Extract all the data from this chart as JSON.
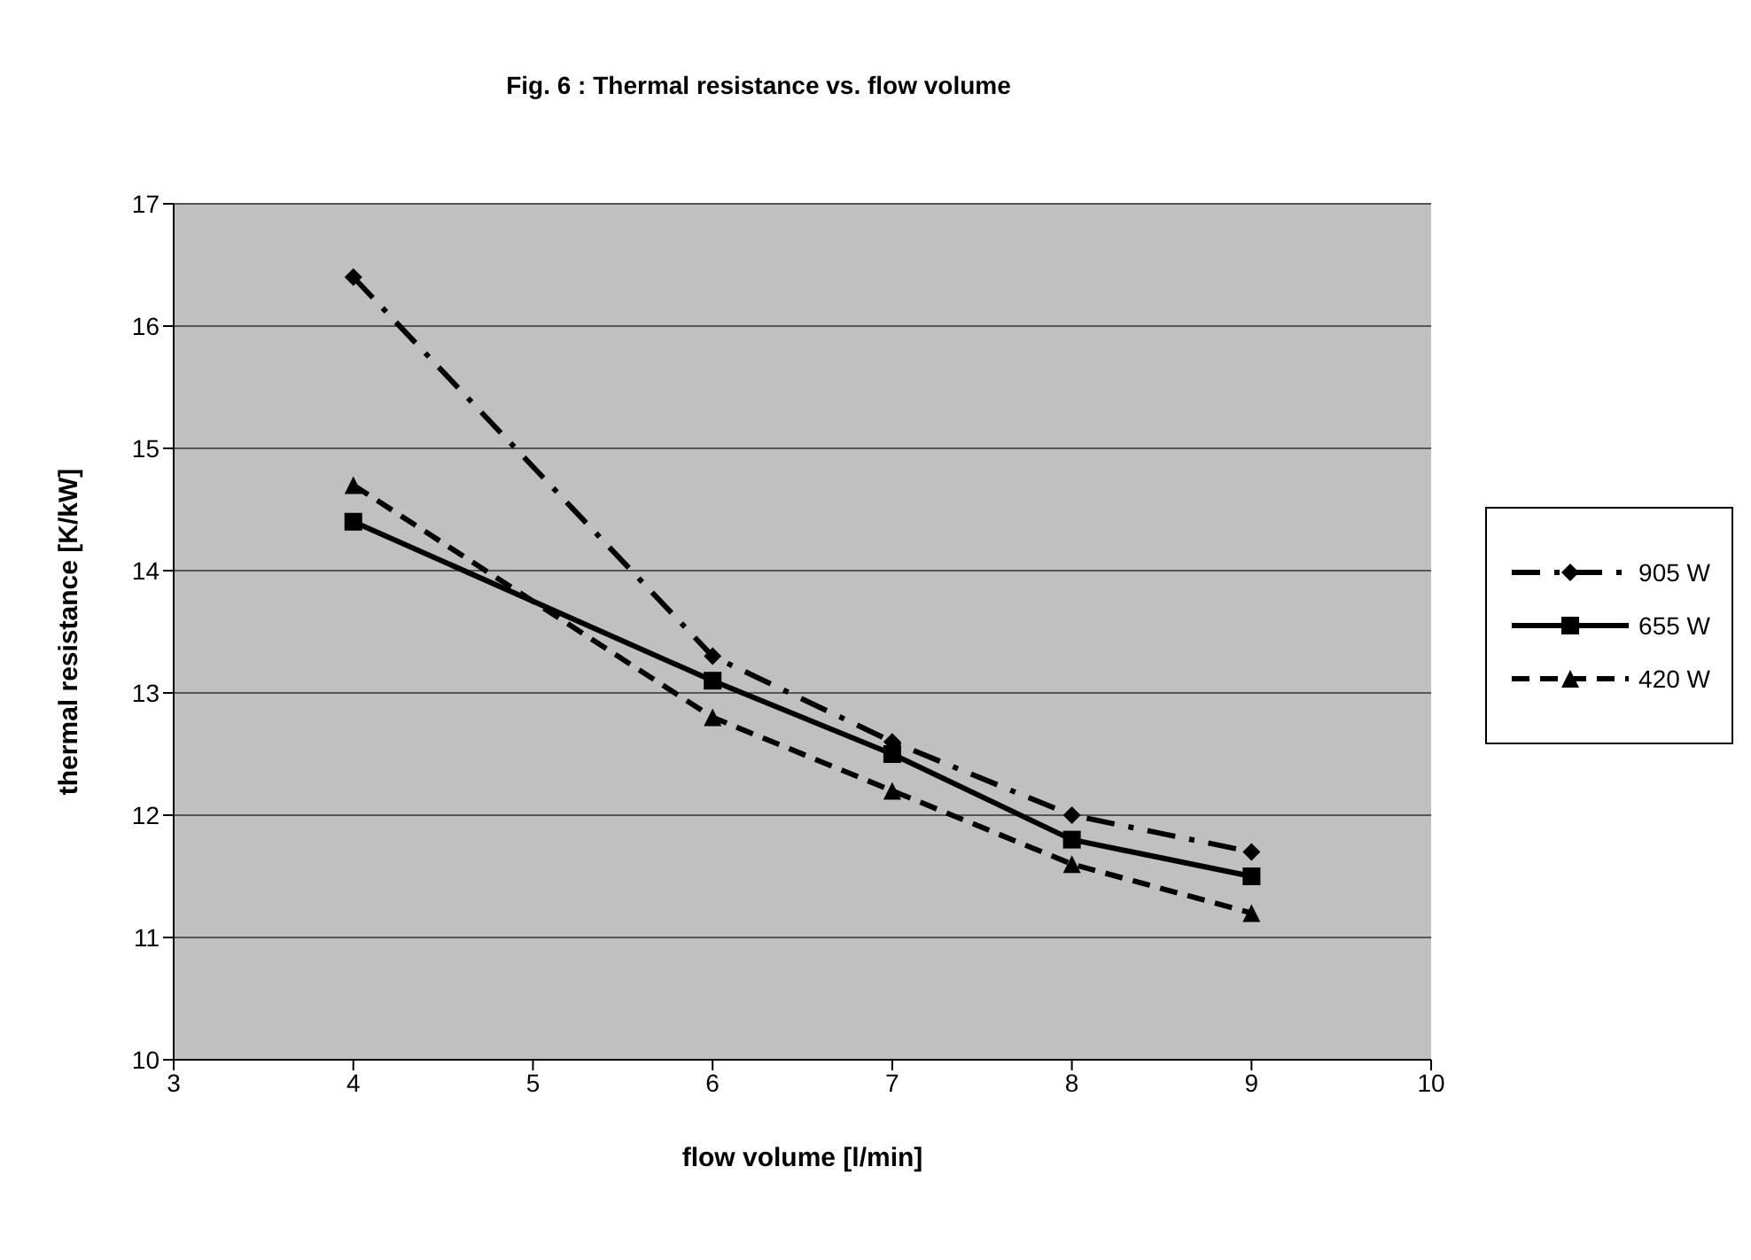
{
  "chart_data": {
    "type": "line",
    "title": "Fig. 6 : Thermal resistance vs. flow volume",
    "xlabel": "flow volume [l/min]",
    "ylabel": "thermal resistance [K/kW]",
    "x": [
      4,
      6,
      7,
      8,
      9
    ],
    "series": [
      {
        "name": "905 W",
        "color": "#000000",
        "values": [
          16.4,
          13.3,
          12.6,
          12.0,
          11.7
        ],
        "marker": "diamond",
        "line_style": "dashdot"
      },
      {
        "name": "655 W",
        "color": "#000000",
        "values": [
          14.4,
          13.1,
          12.5,
          11.8,
          11.5
        ],
        "marker": "square",
        "line_style": "solid"
      },
      {
        "name": "420 W",
        "color": "#000000",
        "values": [
          14.7,
          12.8,
          12.2,
          11.6,
          11.2
        ],
        "marker": "triangle",
        "line_style": "dashed"
      }
    ],
    "xlim": [
      3,
      10
    ],
    "xticks": [
      3,
      4,
      5,
      6,
      7,
      8,
      9,
      10
    ],
    "ylim": [
      10,
      17
    ],
    "yticks": [
      10,
      11,
      12,
      13,
      14,
      15,
      16,
      17
    ],
    "grid": "y",
    "legend": "right"
  }
}
